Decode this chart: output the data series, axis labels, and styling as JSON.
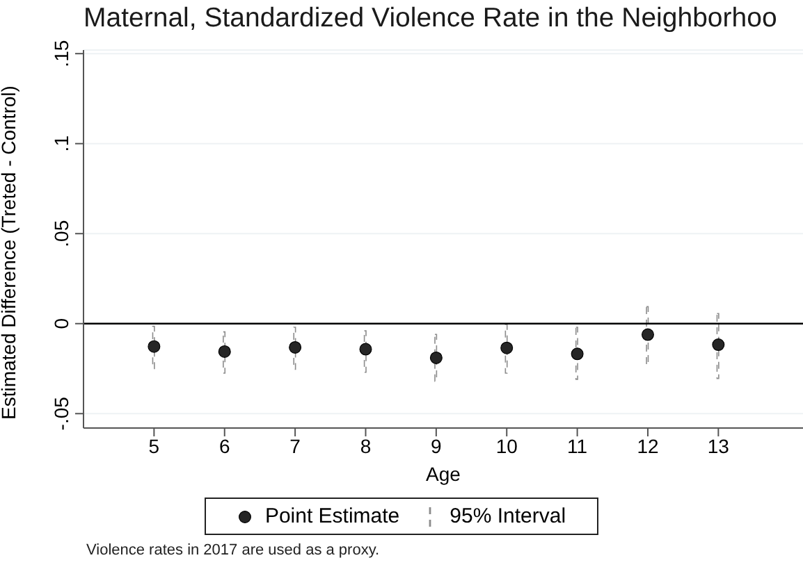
{
  "chart_data": {
    "type": "scatter",
    "title": "Maternal, Standardized Violence Rate in the Neighborhoo",
    "xlabel": "Age",
    "ylabel": "Estimated Difference (Treted - Control)",
    "x": [
      5,
      6,
      7,
      8,
      9,
      10,
      11,
      12,
      13
    ],
    "series": [
      {
        "name": "Point Estimate",
        "color": "#262626",
        "values": [
          -0.0127,
          -0.0155,
          -0.0132,
          -0.0142,
          -0.019,
          -0.0135,
          -0.0168,
          -0.0061,
          -0.0117
        ]
      },
      {
        "name": "95% Interval",
        "type": "bar",
        "color": "#8c8c8c",
        "line_style": "dashed",
        "base": [
          -0.025,
          -0.0275,
          -0.0254,
          -0.027,
          -0.032,
          -0.0275,
          -0.031,
          -0.023,
          -0.0305
        ],
        "values": [
          0.0235,
          0.0229,
          0.0234,
          0.023,
          0.026,
          0.027,
          0.029,
          0.0324,
          0.0361
        ]
      }
    ],
    "xlim": [
      4,
      14.2
    ],
    "xticks": [
      5,
      6,
      7,
      8,
      9,
      10,
      11,
      12,
      13
    ],
    "ylim": [
      -0.058,
      0.152
    ],
    "yticks": [
      {
        "value": -0.05,
        "label": "-.05"
      },
      {
        "value": 0,
        "label": "0"
      },
      {
        "value": 0.05,
        "label": ".05"
      },
      {
        "value": 0.1,
        "label": ".1"
      },
      {
        "value": 0.15,
        "label": ".15"
      }
    ],
    "grid": "y",
    "legend": "bottom",
    "marker": "circle",
    "ref_lines": [
      {
        "axis": "y",
        "value": 0,
        "color": "#000000"
      }
    ],
    "annotations": [
      "Violence rates in 2017 are used as a proxy."
    ]
  }
}
